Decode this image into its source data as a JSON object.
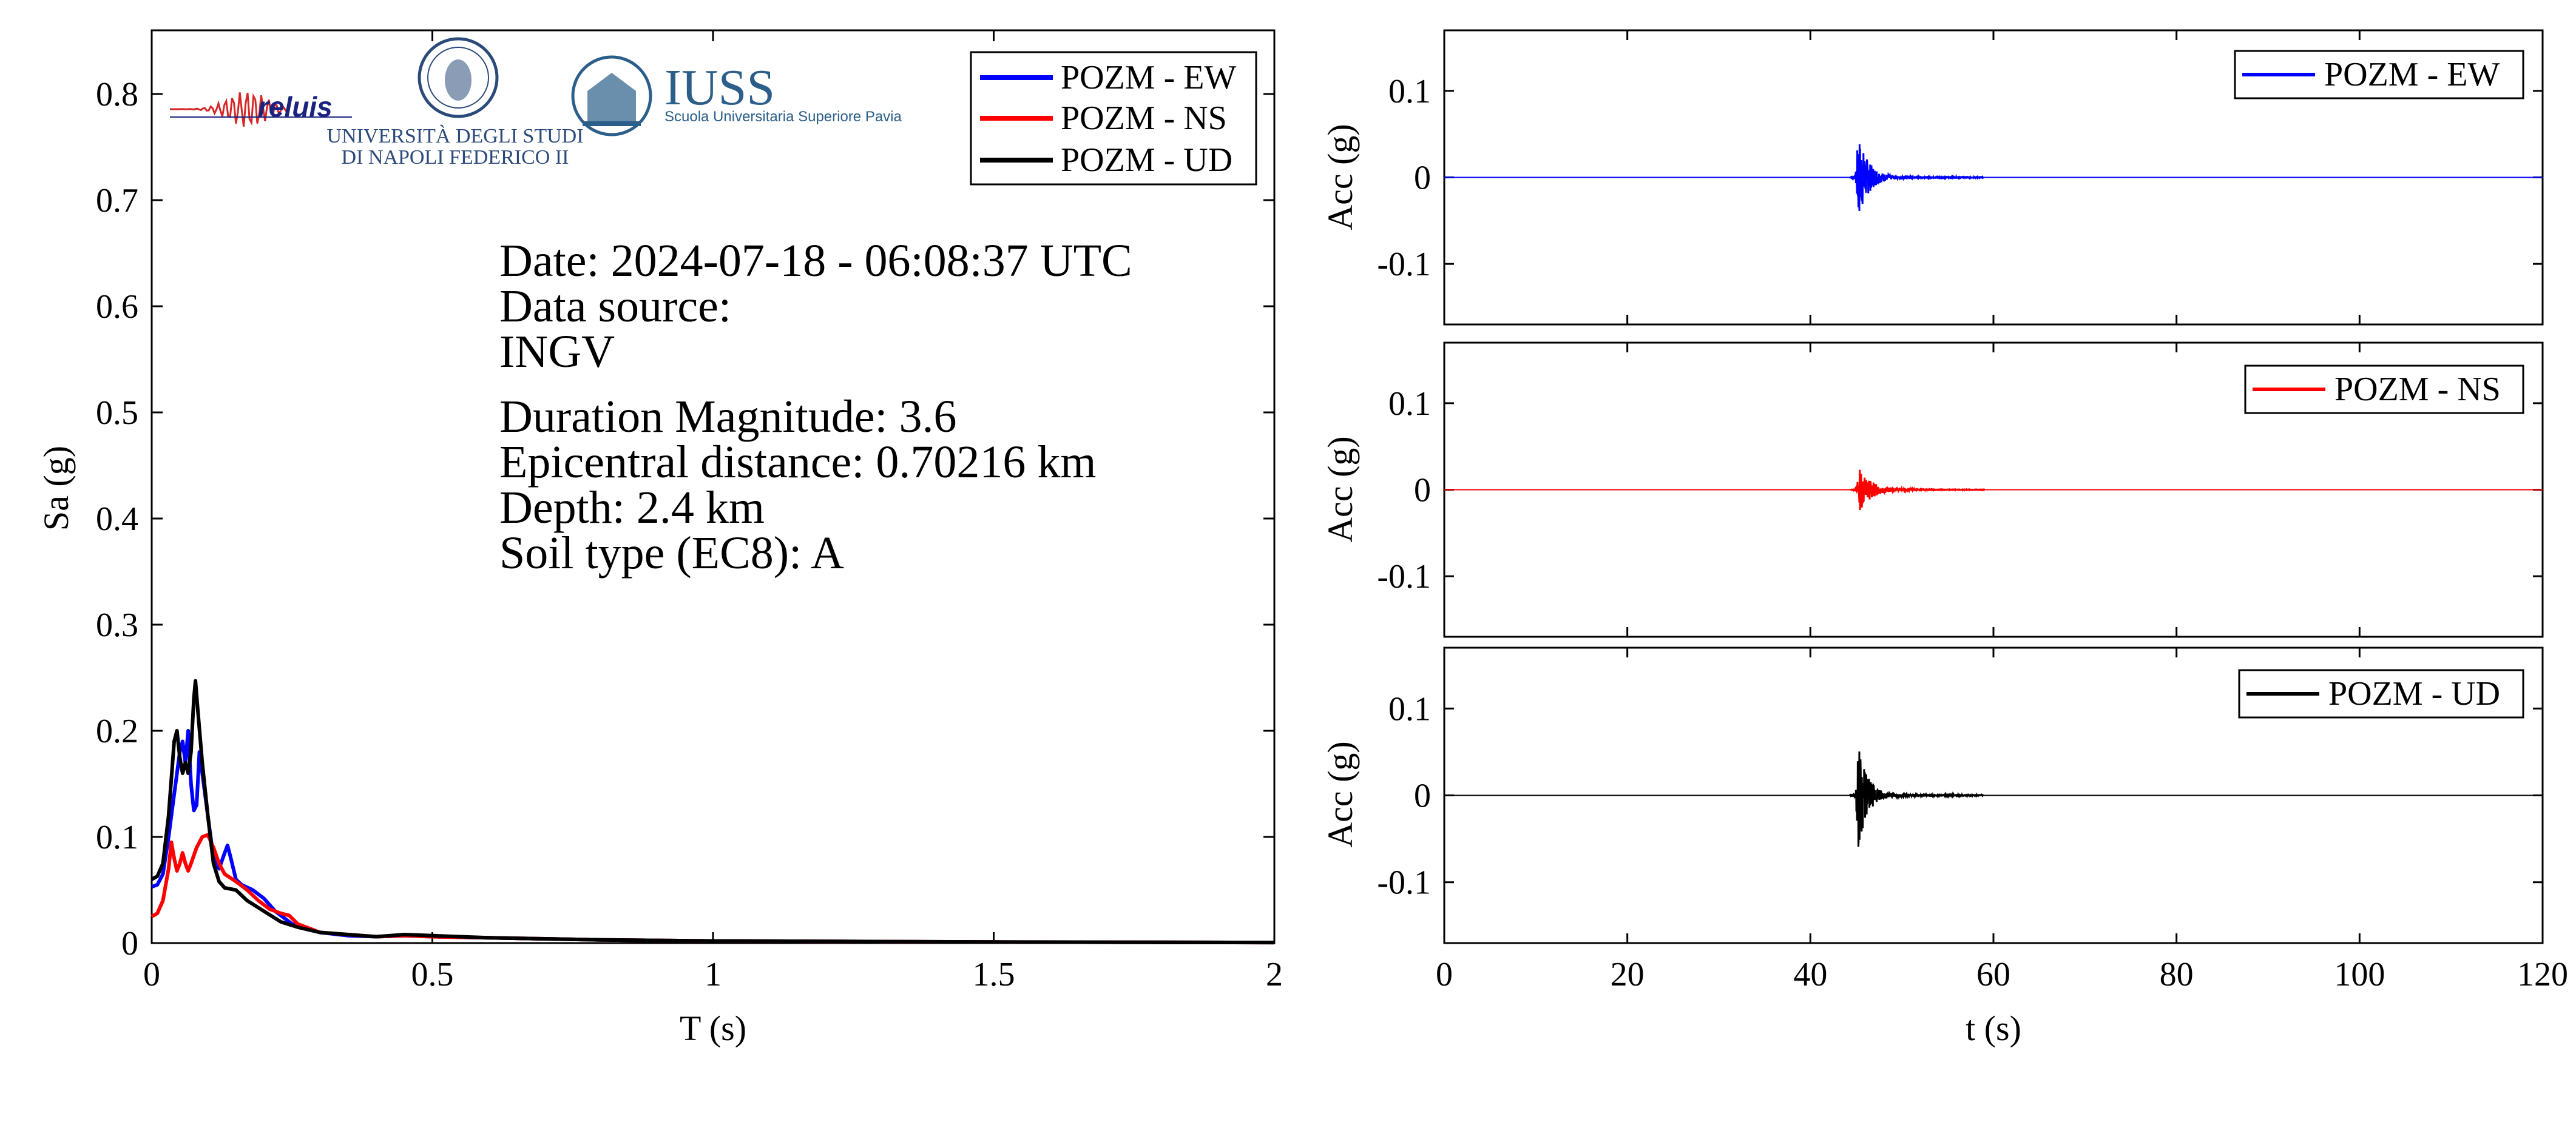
{
  "logos": {
    "reluis": {
      "text": "reluis",
      "accent": "#d62728",
      "ink": "#1a237e"
    },
    "unina": {
      "line1": "UNIVERSITÀ DEGLI STUDI",
      "line2": "DI NAPOLI FEDERICO II",
      "color": "#2b4a7a"
    },
    "iuss": {
      "title": "IUSS",
      "subtitle": "Scuola Universitaria Superiore Pavia",
      "color": "#2b5f8a"
    }
  },
  "event_info": {
    "date": "Date: 2024-07-18 - 06:08:37 UTC",
    "source_label": "Data source:",
    "source": "INGV",
    "magnitude": "Duration Magnitude: 3.6",
    "distance": "Epicentral distance: 0.70216 km",
    "depth": "Depth: 2.4 km",
    "soil": "Soil type (EC8): A"
  },
  "chart_data": [
    {
      "type": "line",
      "id": "spectrum",
      "xlabel": "T (s)",
      "ylabel": "Sa (g)",
      "xlim": [
        0,
        2
      ],
      "ylim": [
        0,
        0.86
      ],
      "xticks": [
        0,
        0.5,
        1,
        1.5,
        2
      ],
      "xtick_labels": [
        "0",
        "0.5",
        "1",
        "1.5",
        "2"
      ],
      "yticks": [
        0,
        0.1,
        0.2,
        0.3,
        0.4,
        0.5,
        0.6,
        0.7,
        0.8
      ],
      "ytick_labels": [
        "0",
        "0.1",
        "0.2",
        "0.3",
        "0.4",
        "0.5",
        "0.6",
        "0.7",
        "0.8"
      ],
      "legend": "top-right",
      "grid": false,
      "series": [
        {
          "name": "POZM - EW",
          "color": "#0000ff",
          "points": [
            [
              0,
              0.053
            ],
            [
              0.01,
              0.055
            ],
            [
              0.02,
              0.065
            ],
            [
              0.03,
              0.1
            ],
            [
              0.04,
              0.14
            ],
            [
              0.05,
              0.18
            ],
            [
              0.055,
              0.19
            ],
            [
              0.06,
              0.17
            ],
            [
              0.065,
              0.2
            ],
            [
              0.07,
              0.15
            ],
            [
              0.075,
              0.125
            ],
            [
              0.08,
              0.13
            ],
            [
              0.085,
              0.18
            ],
            [
              0.09,
              0.16
            ],
            [
              0.1,
              0.12
            ],
            [
              0.11,
              0.08
            ],
            [
              0.12,
              0.07
            ],
            [
              0.13,
              0.085
            ],
            [
              0.135,
              0.092
            ],
            [
              0.14,
              0.082
            ],
            [
              0.15,
              0.06
            ],
            [
              0.16,
              0.055
            ],
            [
              0.18,
              0.05
            ],
            [
              0.2,
              0.042
            ],
            [
              0.22,
              0.03
            ],
            [
              0.25,
              0.018
            ],
            [
              0.3,
              0.01
            ],
            [
              0.35,
              0.007
            ],
            [
              0.4,
              0.006
            ],
            [
              0.45,
              0.007
            ],
            [
              0.5,
              0.006
            ],
            [
              0.6,
              0.005
            ],
            [
              0.7,
              0.004
            ],
            [
              0.8,
              0.003
            ],
            [
              1.0,
              0.002
            ],
            [
              1.5,
              0.001
            ],
            [
              2.0,
              0.0005
            ]
          ]
        },
        {
          "name": "POZM - NS",
          "color": "#ff0000",
          "points": [
            [
              0,
              0.025
            ],
            [
              0.01,
              0.028
            ],
            [
              0.02,
              0.04
            ],
            [
              0.03,
              0.07
            ],
            [
              0.035,
              0.095
            ],
            [
              0.04,
              0.08
            ],
            [
              0.045,
              0.068
            ],
            [
              0.05,
              0.075
            ],
            [
              0.055,
              0.085
            ],
            [
              0.06,
              0.075
            ],
            [
              0.065,
              0.068
            ],
            [
              0.07,
              0.075
            ],
            [
              0.08,
              0.09
            ],
            [
              0.09,
              0.1
            ],
            [
              0.1,
              0.102
            ],
            [
              0.11,
              0.09
            ],
            [
              0.12,
              0.075
            ],
            [
              0.13,
              0.065
            ],
            [
              0.15,
              0.058
            ],
            [
              0.17,
              0.05
            ],
            [
              0.19,
              0.04
            ],
            [
              0.21,
              0.032
            ],
            [
              0.23,
              0.028
            ],
            [
              0.245,
              0.026
            ],
            [
              0.26,
              0.018
            ],
            [
              0.3,
              0.01
            ],
            [
              0.35,
              0.008
            ],
            [
              0.4,
              0.006
            ],
            [
              0.45,
              0.007
            ],
            [
              0.5,
              0.006
            ],
            [
              0.6,
              0.005
            ],
            [
              0.7,
              0.004
            ],
            [
              0.8,
              0.003
            ],
            [
              1.0,
              0.002
            ],
            [
              1.5,
              0.001
            ],
            [
              2.0,
              0.0005
            ]
          ]
        },
        {
          "name": "POZM - UD",
          "color": "#000000",
          "points": [
            [
              0,
              0.06
            ],
            [
              0.01,
              0.063
            ],
            [
              0.02,
              0.075
            ],
            [
              0.03,
              0.12
            ],
            [
              0.04,
              0.19
            ],
            [
              0.045,
              0.2
            ],
            [
              0.05,
              0.175
            ],
            [
              0.055,
              0.16
            ],
            [
              0.06,
              0.17
            ],
            [
              0.065,
              0.16
            ],
            [
              0.07,
              0.18
            ],
            [
              0.075,
              0.23
            ],
            [
              0.078,
              0.247
            ],
            [
              0.082,
              0.22
            ],
            [
              0.09,
              0.17
            ],
            [
              0.1,
              0.12
            ],
            [
              0.11,
              0.075
            ],
            [
              0.12,
              0.058
            ],
            [
              0.13,
              0.052
            ],
            [
              0.15,
              0.05
            ],
            [
              0.17,
              0.04
            ],
            [
              0.2,
              0.03
            ],
            [
              0.23,
              0.02
            ],
            [
              0.26,
              0.015
            ],
            [
              0.3,
              0.01
            ],
            [
              0.35,
              0.008
            ],
            [
              0.4,
              0.006
            ],
            [
              0.45,
              0.008
            ],
            [
              0.5,
              0.007
            ],
            [
              0.6,
              0.005
            ],
            [
              0.7,
              0.004
            ],
            [
              0.8,
              0.003
            ],
            [
              1.0,
              0.002
            ],
            [
              1.5,
              0.001
            ],
            [
              2.0,
              0.0005
            ]
          ]
        }
      ]
    },
    {
      "type": "line",
      "id": "acc-ew",
      "ylabel": "Acc (g)",
      "xlim": [
        0,
        120
      ],
      "ylim": [
        -0.17,
        0.17
      ],
      "yticks": [
        -0.1,
        0,
        0.1
      ],
      "ytick_labels": [
        "-0.1",
        "0",
        "0.1"
      ],
      "legend": "top-right",
      "series": [
        {
          "name": "POZM - EW",
          "color": "#0000ff",
          "arrival": 44.9,
          "peak": 0.05,
          "decay": 1.1,
          "seed": 7
        }
      ]
    },
    {
      "type": "line",
      "id": "acc-ns",
      "ylabel": "Acc (g)",
      "xlim": [
        0,
        120
      ],
      "ylim": [
        -0.17,
        0.17
      ],
      "yticks": [
        -0.1,
        0,
        0.1
      ],
      "ytick_labels": [
        "-0.1",
        "0",
        "0.1"
      ],
      "legend": "top-right",
      "series": [
        {
          "name": "POZM - NS",
          "color": "#ff0000",
          "arrival": 45.0,
          "peak": 0.025,
          "decay": 1.4,
          "seed": 13
        }
      ]
    },
    {
      "type": "line",
      "id": "acc-ud",
      "xlabel": "t (s)",
      "ylabel": "Acc (g)",
      "xlim": [
        0,
        120
      ],
      "ylim": [
        -0.17,
        0.17
      ],
      "xticks": [
        0,
        20,
        40,
        60,
        80,
        100,
        120
      ],
      "xtick_labels": [
        "0",
        "20",
        "40",
        "60",
        "80",
        "100",
        "120"
      ],
      "yticks": [
        -0.1,
        0,
        0.1
      ],
      "ytick_labels": [
        "-0.1",
        "0",
        "0.1"
      ],
      "legend": "top-right",
      "series": [
        {
          "name": "POZM - UD",
          "color": "#000000",
          "arrival": 44.9,
          "peak": 0.06,
          "decay": 1.0,
          "seed": 29
        }
      ]
    }
  ]
}
